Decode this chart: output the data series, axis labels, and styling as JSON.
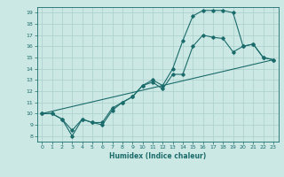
{
  "title": "",
  "xlabel": "Humidex (Indice chaleur)",
  "ylabel": "",
  "bg_color": "#cce8e4",
  "grid_color": "#aacfcb",
  "line_color": "#1a6b6b",
  "xlim": [
    -0.5,
    23.5
  ],
  "ylim": [
    7.5,
    19.5
  ],
  "xticks": [
    0,
    1,
    2,
    3,
    4,
    5,
    6,
    7,
    8,
    9,
    10,
    11,
    12,
    13,
    14,
    15,
    16,
    17,
    18,
    19,
    20,
    21,
    22,
    23
  ],
  "yticks": [
    8,
    9,
    10,
    11,
    12,
    13,
    14,
    15,
    16,
    17,
    18,
    19
  ],
  "line1_x": [
    0,
    1,
    2,
    3,
    4,
    5,
    6,
    7,
    8,
    9,
    10,
    11,
    12,
    13,
    14,
    15,
    16,
    17,
    18,
    19,
    20,
    21,
    22,
    23
  ],
  "line1_y": [
    10.0,
    10.0,
    9.5,
    8.0,
    9.5,
    9.2,
    9.2,
    10.5,
    11.0,
    11.5,
    12.5,
    13.0,
    12.5,
    14.0,
    16.5,
    18.7,
    19.2,
    19.2,
    19.2,
    19.0,
    16.0,
    16.2,
    15.0,
    14.8
  ],
  "line2_x": [
    0,
    1,
    2,
    3,
    4,
    5,
    6,
    7,
    8,
    9,
    10,
    11,
    12,
    13,
    14,
    15,
    16,
    17,
    18,
    19,
    20,
    21,
    22,
    23
  ],
  "line2_y": [
    10.0,
    10.0,
    9.5,
    8.5,
    9.5,
    9.2,
    9.0,
    10.3,
    11.0,
    11.5,
    12.5,
    12.8,
    12.2,
    13.5,
    13.5,
    16.0,
    17.0,
    16.8,
    16.7,
    15.5,
    16.0,
    16.2,
    15.0,
    14.8
  ],
  "line3_x": [
    0,
    23
  ],
  "line3_y": [
    10.0,
    14.8
  ]
}
